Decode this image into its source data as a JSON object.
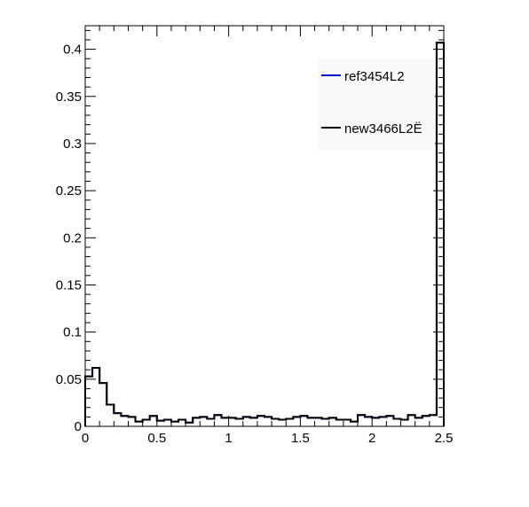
{
  "chart_data": {
    "type": "histogram",
    "title": "",
    "xlabel": "",
    "ylabel": "",
    "xlim": [
      0,
      2.5
    ],
    "ylim": [
      0,
      0.425
    ],
    "x_ticks": [
      0,
      0.5,
      1,
      1.5,
      2,
      2.5
    ],
    "x_tick_labels": [
      "0",
      "0.5",
      "1",
      "1.5",
      "2",
      "2.5"
    ],
    "y_ticks": [
      0,
      0.05,
      0.1,
      0.15,
      0.2,
      0.25,
      0.3,
      0.35,
      0.4
    ],
    "y_tick_labels": [
      "0",
      "0.05",
      "0.1",
      "0.15",
      "0.2",
      "0.25",
      "0.3",
      "0.35",
      "0.4"
    ],
    "grid": false,
    "legend_position": "top-right",
    "bin_edges_start": 0,
    "bin_width": 0.05,
    "series": [
      {
        "name": "ref3454L2",
        "color": "#0000cc",
        "values": [
          0.053,
          0.062,
          0.046,
          0.023,
          0.014,
          0.011,
          0.01,
          0.005,
          0.007,
          0.011,
          0.006,
          0.007,
          0.005,
          0.007,
          0.004,
          0.009,
          0.01,
          0.008,
          0.012,
          0.009,
          0.009,
          0.008,
          0.01,
          0.009,
          0.011,
          0.01,
          0.008,
          0.007,
          0.008,
          0.01,
          0.011,
          0.009,
          0.009,
          0.008,
          0.009,
          0.007,
          0.007,
          0.005,
          0.012,
          0.01,
          0.009,
          0.01,
          0.011,
          0.008,
          0.007,
          0.012,
          0.009,
          0.011,
          0.012,
          0.407
        ]
      },
      {
        "name": "new3466L2Ë",
        "color": "#000000",
        "values": [
          0.053,
          0.062,
          0.046,
          0.023,
          0.014,
          0.011,
          0.01,
          0.005,
          0.007,
          0.011,
          0.006,
          0.007,
          0.005,
          0.007,
          0.004,
          0.009,
          0.01,
          0.008,
          0.012,
          0.009,
          0.009,
          0.008,
          0.01,
          0.009,
          0.011,
          0.01,
          0.008,
          0.007,
          0.008,
          0.01,
          0.011,
          0.009,
          0.009,
          0.008,
          0.009,
          0.007,
          0.007,
          0.005,
          0.012,
          0.01,
          0.009,
          0.01,
          0.011,
          0.008,
          0.007,
          0.012,
          0.009,
          0.011,
          0.012,
          0.407
        ]
      }
    ]
  }
}
